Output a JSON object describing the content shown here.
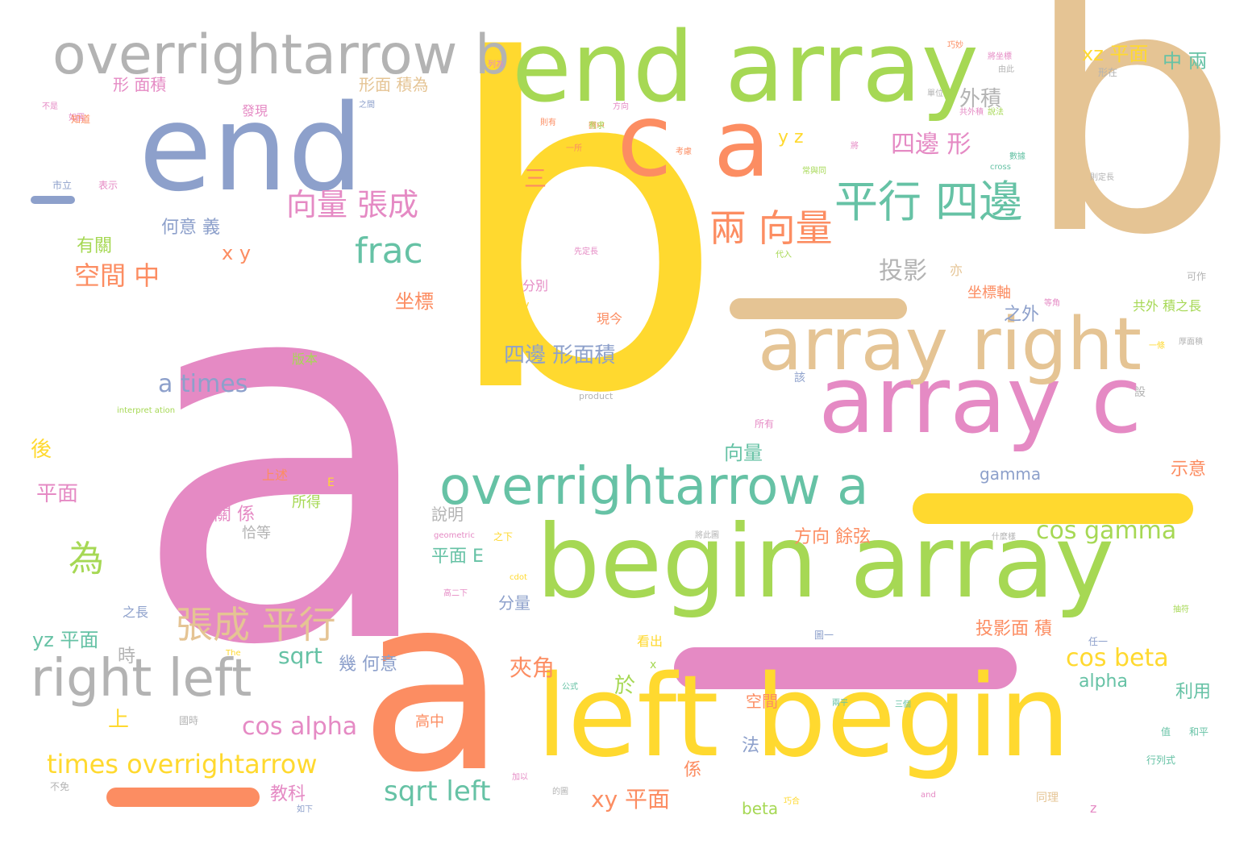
{
  "palette": {
    "pink": "#e58ac4",
    "orange": "#fc8d62",
    "yellow": "#ffd92f",
    "green": "#a6d854",
    "teal": "#66c2a5",
    "blue": "#8da0cb",
    "tan": "#e5c494",
    "gray": "#b3b3b3"
  },
  "words": [
    {
      "text": "a",
      "color": "pink"
    },
    {
      "text": "b",
      "color": "yellow"
    },
    {
      "text": "b",
      "color": "tan"
    },
    {
      "text": "a",
      "color": "orange"
    },
    {
      "text": "end array",
      "color": "green"
    },
    {
      "text": "end",
      "color": "blue"
    },
    {
      "text": "overrightarrow b",
      "color": "gray"
    },
    {
      "text": "c",
      "color": "orange"
    },
    {
      "text": "a",
      "color": "orange"
    },
    {
      "text": "array c",
      "color": "pink"
    },
    {
      "text": "array right",
      "color": "tan"
    },
    {
      "text": "begin array",
      "color": "green"
    },
    {
      "text": "left begin",
      "color": "yellow"
    },
    {
      "text": "overrightarrow a",
      "color": "teal"
    },
    {
      "text": "right left",
      "color": "gray"
    },
    {
      "text": "平行 四邊",
      "color": "teal"
    },
    {
      "text": "向量 張成",
      "color": "pink"
    },
    {
      "text": "兩 向量",
      "color": "orange"
    },
    {
      "text": "frac",
      "color": "teal"
    },
    {
      "text": "張成 平行",
      "color": "tan"
    },
    {
      "text": "空間 中",
      "color": "orange"
    },
    {
      "text": "a times",
      "color": "blue"
    },
    {
      "text": "times overrightarrow",
      "color": "yellow"
    },
    {
      "text": "sqrt left",
      "color": "teal"
    },
    {
      "text": "cos alpha",
      "color": "pink"
    },
    {
      "text": "cos gamma",
      "color": "green"
    },
    {
      "text": "cos beta",
      "color": "yellow"
    },
    {
      "text": "四邊 形面積",
      "color": "blue"
    },
    {
      "text": "四邊 形",
      "color": "pink"
    },
    {
      "text": "投影",
      "color": "gray"
    },
    {
      "text": "為",
      "color": "green"
    },
    {
      "text": "xy 平面",
      "color": "orange"
    },
    {
      "text": "夾角",
      "color": "orange"
    },
    {
      "text": "sqrt",
      "color": "teal"
    },
    {
      "text": "yz 平面",
      "color": "teal"
    },
    {
      "text": "外積",
      "color": "gray"
    },
    {
      "text": "xz 平面",
      "color": "yellow"
    },
    {
      "text": "中 兩",
      "color": "teal"
    },
    {
      "text": "形 面積",
      "color": "pink"
    },
    {
      "text": "形面 積為",
      "color": "tan"
    },
    {
      "text": "何意 義",
      "color": "blue"
    },
    {
      "text": "x y",
      "color": "orange"
    },
    {
      "text": "y z",
      "color": "yellow"
    },
    {
      "text": "三",
      "color": "orange"
    },
    {
      "text": "有關",
      "color": "green"
    },
    {
      "text": "坐標",
      "color": "orange"
    },
    {
      "text": "向量",
      "color": "teal"
    },
    {
      "text": "方向 餘弦",
      "color": "orange"
    },
    {
      "text": "平面 E",
      "color": "teal"
    },
    {
      "text": "投影面 積",
      "color": "orange"
    },
    {
      "text": "gamma",
      "color": "blue"
    },
    {
      "text": "示意",
      "color": "orange"
    },
    {
      "text": "alpha",
      "color": "teal"
    },
    {
      "text": "利用",
      "color": "teal"
    },
    {
      "text": "之外",
      "color": "blue"
    },
    {
      "text": "坐標軸",
      "color": "orange"
    },
    {
      "text": "平面",
      "color": "pink"
    },
    {
      "text": "後",
      "color": "yellow"
    },
    {
      "text": "關 係",
      "color": "pink"
    },
    {
      "text": "所得",
      "color": "green"
    },
    {
      "text": "說明",
      "color": "gray"
    },
    {
      "text": "恰等",
      "color": "gray"
    },
    {
      "text": "分量",
      "color": "blue"
    },
    {
      "text": "幾 何意",
      "color": "blue"
    },
    {
      "text": "於",
      "color": "green"
    },
    {
      "text": "時",
      "color": "gray"
    },
    {
      "text": "上",
      "color": "yellow"
    },
    {
      "text": "教科",
      "color": "pink"
    },
    {
      "text": "beta",
      "color": "green"
    },
    {
      "text": "係",
      "color": "orange"
    },
    {
      "text": "法",
      "color": "blue"
    },
    {
      "text": "空間",
      "color": "orange"
    },
    {
      "text": "看出",
      "color": "yellow"
    },
    {
      "text": "分別",
      "color": "pink"
    },
    {
      "text": "現今",
      "color": "orange"
    },
    {
      "text": "亦",
      "color": "tan"
    },
    {
      "text": "共外 積之長",
      "color": "green"
    },
    {
      "text": "之長",
      "color": "blue"
    },
    {
      "text": "版本",
      "color": "green"
    },
    {
      "text": "發現",
      "color": "pink"
    },
    {
      "text": "上述",
      "color": "orange"
    },
    {
      "text": "高中",
      "color": "orange"
    },
    {
      "text": "product",
      "color": "gray"
    },
    {
      "text": "interpret ation",
      "color": "green"
    },
    {
      "text": "geometric",
      "color": "pink"
    },
    {
      "text": "cross",
      "color": "teal"
    },
    {
      "text": "cdot",
      "color": "yellow"
    },
    {
      "text": "The",
      "color": "yellow"
    },
    {
      "text": "and",
      "color": "pink"
    },
    {
      "text": "z",
      "color": "pink"
    },
    {
      "text": "x",
      "color": "green"
    },
    {
      "text": "E",
      "color": "yellow"
    },
    {
      "text": "xy",
      "color": "yellow"
    },
    {
      "text": "值",
      "color": "teal"
    },
    {
      "text": "行列式",
      "color": "teal"
    },
    {
      "text": "任一",
      "color": "blue"
    },
    {
      "text": "同理",
      "color": "tan"
    },
    {
      "text": "巧妙",
      "color": "orange"
    },
    {
      "text": "將坐標",
      "color": "pink"
    },
    {
      "text": "形在",
      "color": "gray"
    },
    {
      "text": "單位",
      "color": "gray"
    },
    {
      "text": "共外積",
      "color": "pink"
    },
    {
      "text": "列為",
      "color": "pink"
    },
    {
      "text": "方向",
      "color": "pink"
    },
    {
      "text": "則有",
      "color": "orange"
    },
    {
      "text": "國中",
      "color": "orange"
    },
    {
      "text": "一所",
      "color": "orange"
    },
    {
      "text": "考慮",
      "color": "orange"
    },
    {
      "text": "將",
      "color": "pink"
    },
    {
      "text": "常與同",
      "color": "green"
    },
    {
      "text": "數據",
      "color": "teal"
    },
    {
      "text": "則定長",
      "color": "gray"
    },
    {
      "text": "先定長",
      "color": "pink"
    },
    {
      "text": "代入",
      "color": "green"
    },
    {
      "text": "可作",
      "color": "gray"
    },
    {
      "text": "不是",
      "color": "pink"
    },
    {
      "text": "一條",
      "color": "yellow"
    },
    {
      "text": "厚面積",
      "color": "gray"
    },
    {
      "text": "等角",
      "color": "pink"
    },
    {
      "text": "設",
      "color": "gray"
    },
    {
      "text": "該",
      "color": "blue"
    },
    {
      "text": "和平",
      "color": "teal"
    },
    {
      "text": "抽符",
      "color": "green"
    },
    {
      "text": "公式",
      "color": "teal"
    },
    {
      "text": "三個",
      "color": "teal"
    },
    {
      "text": "兩平",
      "color": "teal"
    },
    {
      "text": "圖一",
      "color": "blue"
    },
    {
      "text": "所有",
      "color": "pink"
    },
    {
      "text": "的圖",
      "color": "gray"
    },
    {
      "text": "巧合",
      "color": "yellow"
    },
    {
      "text": "加以",
      "color": "pink"
    },
    {
      "text": "如下",
      "color": "blue"
    },
    {
      "text": "不免",
      "color": "gray"
    },
    {
      "text": "國時",
      "color": "gray"
    },
    {
      "text": "如圖",
      "color": "pink"
    },
    {
      "text": "由此",
      "color": "gray"
    },
    {
      "text": "市立",
      "color": "blue"
    },
    {
      "text": "表示",
      "color": "pink"
    },
    {
      "text": "有求",
      "color": "green"
    },
    {
      "text": "之間",
      "color": "blue"
    },
    {
      "text": "知道",
      "color": "orange"
    },
    {
      "text": "說法",
      "color": "green"
    },
    {
      "text": "高二下",
      "color": "pink"
    },
    {
      "text": "之下",
      "color": "yellow"
    },
    {
      "text": "將此圖",
      "color": "gray"
    },
    {
      "text": "什麼樣",
      "color": "gray"
    }
  ]
}
